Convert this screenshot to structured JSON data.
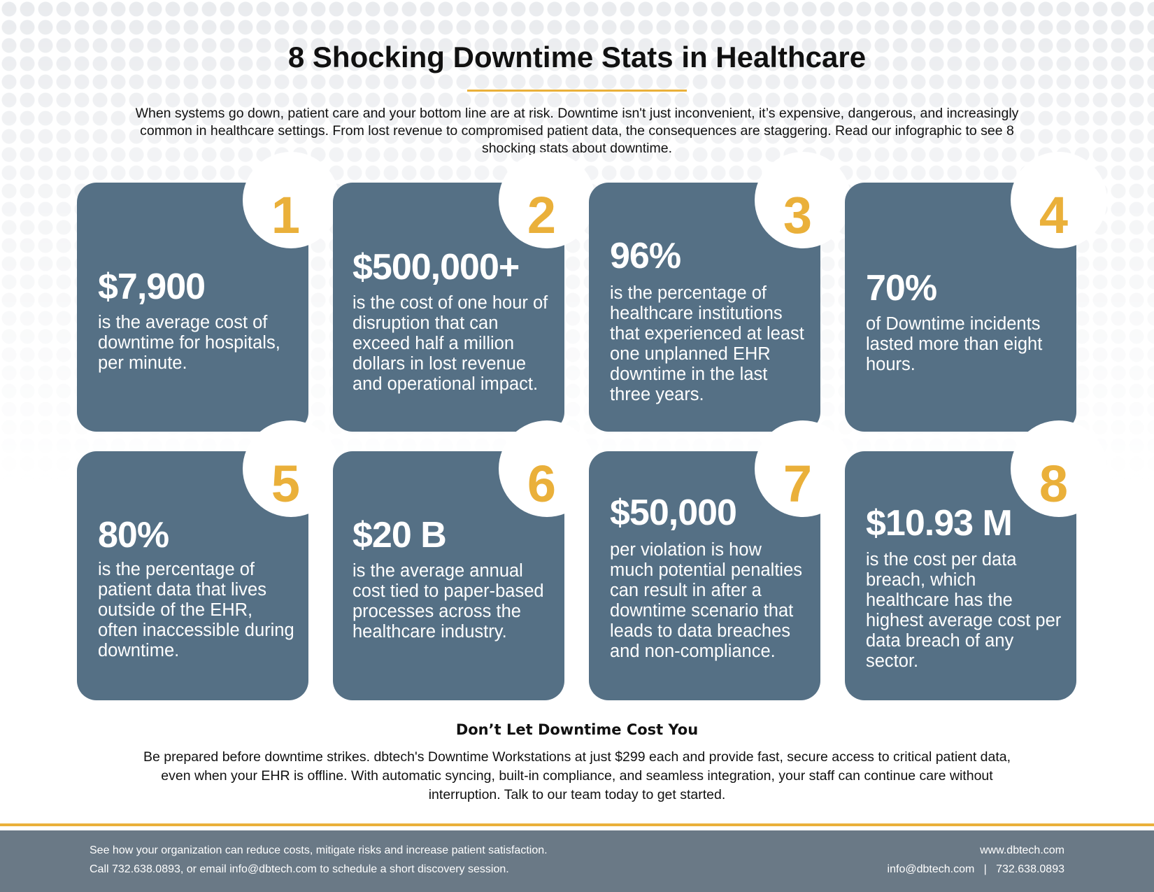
{
  "header": {
    "title": "8 Shocking Downtime Stats in Healthcare",
    "intro": "When systems go down, patient care and your bottom line are at risk. Downtime isn't just inconvenient, it’s expensive, dangerous, and increasingly common in healthcare settings. From lost revenue to compromised patient data, the consequences are staggering. Read our infographic to see 8 shocking stats about downtime."
  },
  "stats": [
    {
      "number": "1",
      "value": "$7,900",
      "desc": "is the average cost of downtime for hospitals, per minute."
    },
    {
      "number": "2",
      "value": "$500,000+",
      "desc": "is the cost of one hour of disruption that can exceed half a million dollars in lost revenue and operational impact."
    },
    {
      "number": "3",
      "value": "96%",
      "desc": "is the percentage of healthcare institutions that experienced at least one unplanned EHR downtime in the last three years."
    },
    {
      "number": "4",
      "value": "70%",
      "desc": "of Downtime incidents lasted more than eight hours."
    },
    {
      "number": "5",
      "value": "80%",
      "desc": "is the percentage of patient data that lives outside of the EHR, often inaccessible during downtime."
    },
    {
      "number": "6",
      "value": "$20 B",
      "desc": "is the average annual cost tied to paper-based processes across the healthcare industry."
    },
    {
      "number": "7",
      "value": "$50,000",
      "desc": "per violation is how much potential penalties can result in after a downtime scenario that leads to data breaches and non-compliance."
    },
    {
      "number": "8",
      "value": "$10.93 M",
      "desc": "is the cost per data breach, which healthcare has the highest average cost per data breach of any sector."
    }
  ],
  "cta": {
    "heading": "Don’t Let Downtime Cost You",
    "body": "Be prepared before downtime strikes. dbtech's Downtime Workstations at just $299 each and provide fast, secure access to critical patient data, even when your EHR is offline. With automatic syncing, built-in compliance, and seamless integration, your staff can continue care without interruption. Talk to our team today to get started."
  },
  "footer": {
    "line1": "See how your organization can reduce costs, mitigate risks and increase patient satisfaction.",
    "line2": "Call 732.638.0893, or email info@dbtech.com to schedule a short discovery session.",
    "website": "www.dbtech.com",
    "contact": "info@dbtech.com   |   732.638.0893"
  },
  "colors": {
    "card": "#557085",
    "accent": "#eab03a",
    "footer": "#6a7986"
  }
}
